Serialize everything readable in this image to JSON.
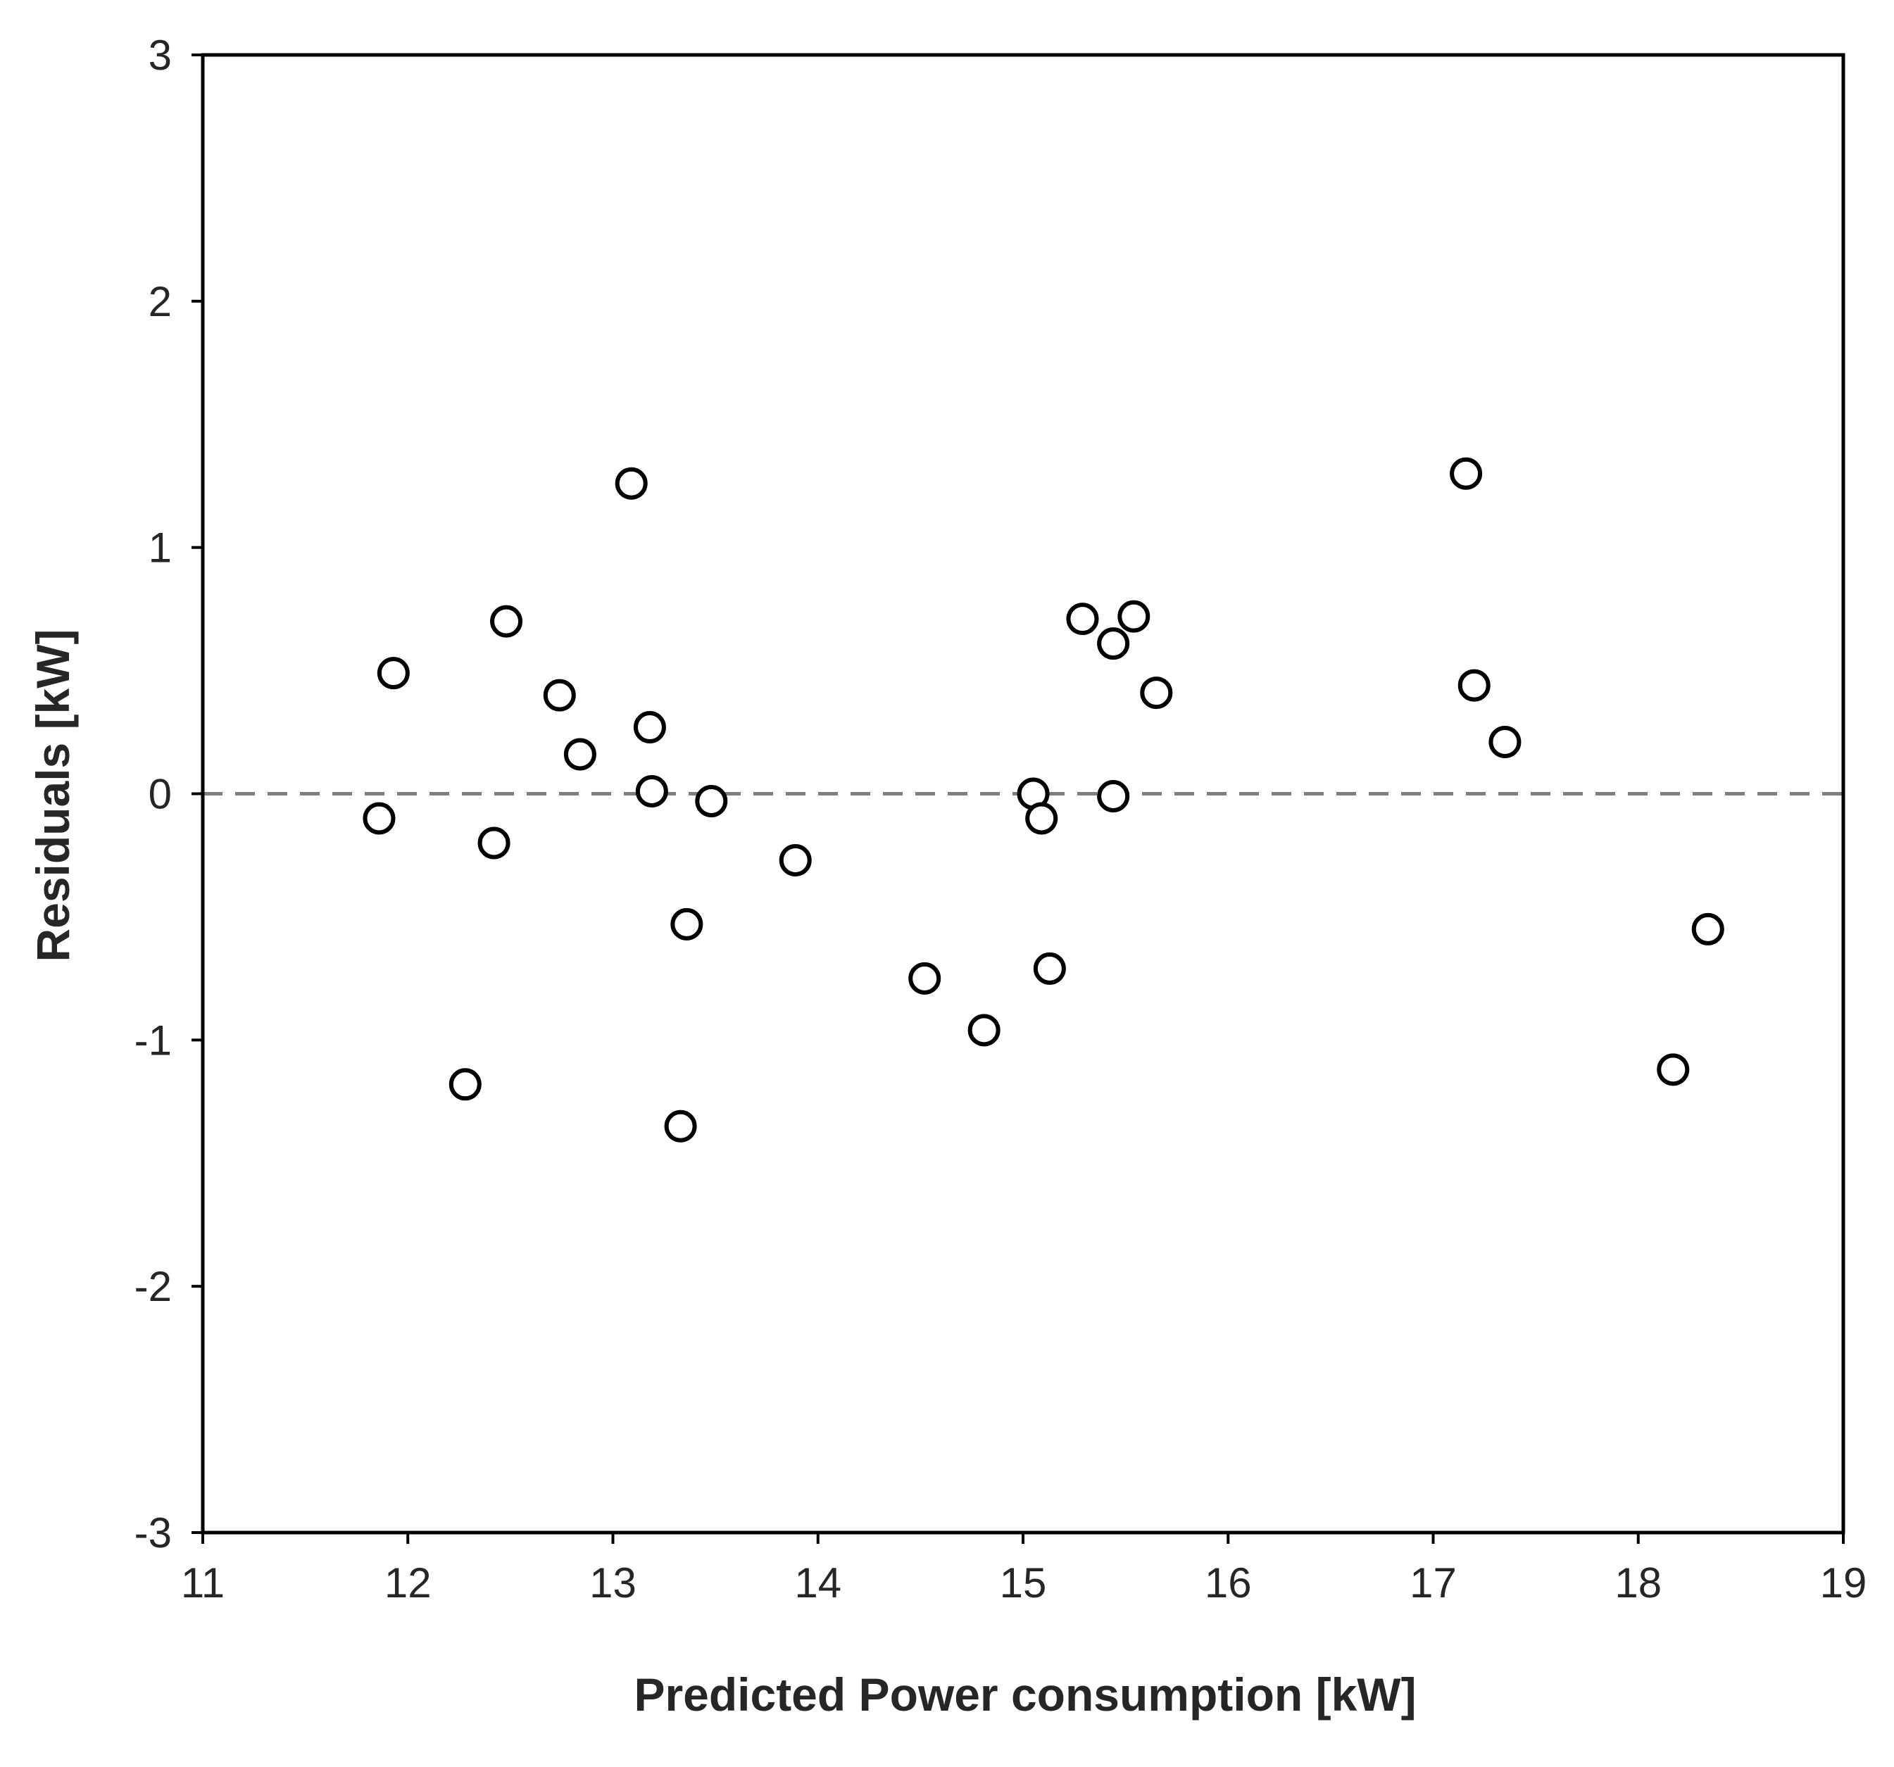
{
  "chart_data": {
    "type": "scatter",
    "title": "",
    "xlabel": "Predicted Power consumption [kW]",
    "ylabel": "Residuals [kW]",
    "xlim": [
      11,
      19
    ],
    "ylim": [
      -3,
      3
    ],
    "xticks": [
      11,
      12,
      13,
      14,
      15,
      16,
      17,
      18,
      19
    ],
    "yticks": [
      -3,
      -2,
      -1,
      0,
      1,
      2,
      3
    ],
    "grid": false,
    "legend": "none",
    "reference_line": {
      "y": 0,
      "style": "dashed",
      "color": "#7f7f7f"
    },
    "marker": {
      "shape": "open-circle",
      "color": "#000000"
    },
    "series": [
      {
        "name": "Residuals",
        "x": [
          11.86,
          11.93,
          12.28,
          12.42,
          12.48,
          12.74,
          12.84,
          13.09,
          13.18,
          13.19,
          13.33,
          13.36,
          13.48,
          13.89,
          14.52,
          14.81,
          15.05,
          15.09,
          15.13,
          15.29,
          15.44,
          15.44,
          15.54,
          15.65,
          17.16,
          17.2,
          17.35,
          18.17,
          18.34
        ],
        "y": [
          -0.1,
          0.49,
          -1.18,
          -0.2,
          0.7,
          0.4,
          0.16,
          1.26,
          0.27,
          0.01,
          -1.35,
          -0.53,
          -0.03,
          -0.27,
          -0.75,
          -0.96,
          0.0,
          -0.1,
          -0.71,
          0.71,
          0.61,
          -0.01,
          0.72,
          0.41,
          1.3,
          0.44,
          0.21,
          -1.12,
          -0.55
        ]
      }
    ]
  }
}
